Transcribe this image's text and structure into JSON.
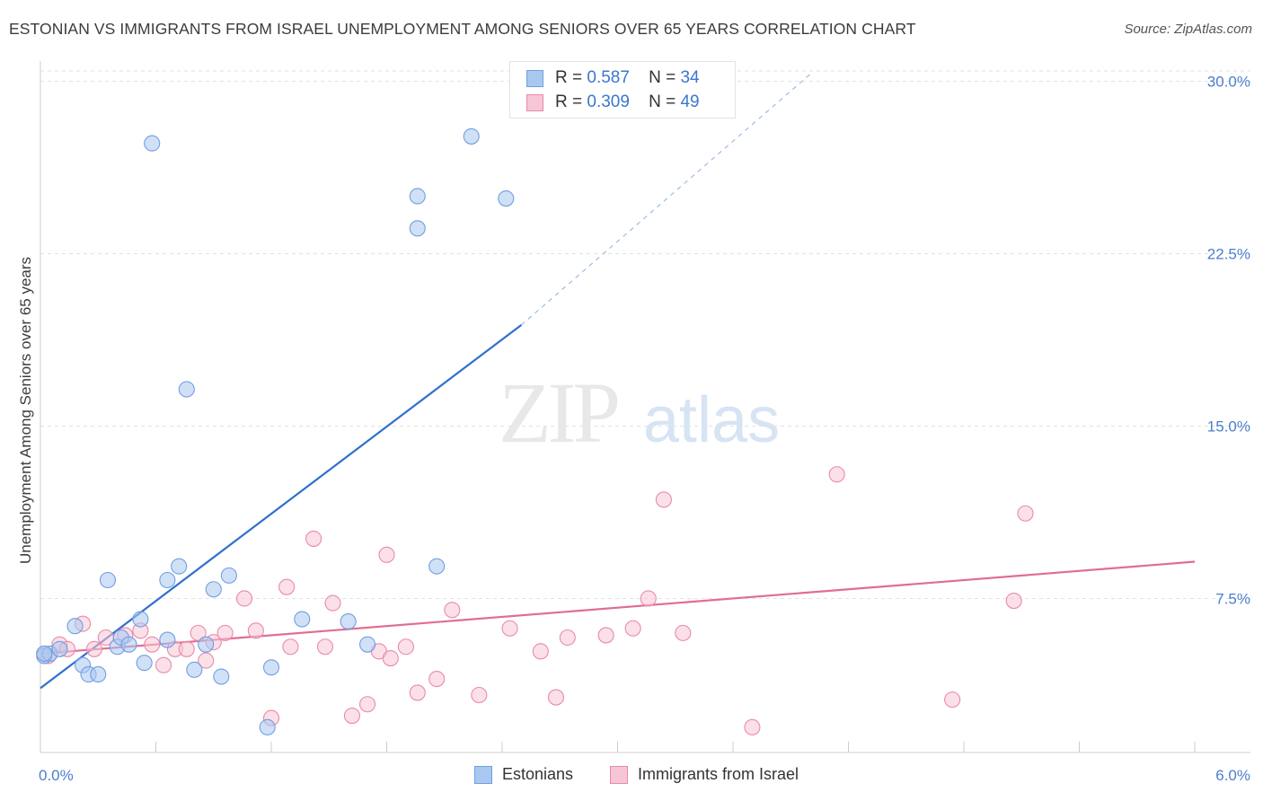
{
  "title": "ESTONIAN VS IMMIGRANTS FROM ISRAEL UNEMPLOYMENT AMONG SENIORS OVER 65 YEARS CORRELATION CHART",
  "source": "Source: ZipAtlas.com",
  "watermark": {
    "zip": "ZIP",
    "atlas": "atlas"
  },
  "legend": {
    "rows": [
      {
        "r_label": "R =",
        "r_value": "0.587",
        "n_label": "N =",
        "n_value": "34",
        "color": "#a9c8f0",
        "border": "#6f9fdf"
      },
      {
        "r_label": "R =",
        "r_value": "0.309",
        "n_label": "N =",
        "n_value": "49",
        "color": "#f7c6d6",
        "border": "#e98aa9"
      }
    ]
  },
  "bottom_legend": [
    {
      "label": "Estonians",
      "color": "#a9c8f0",
      "border": "#6f9fdf"
    },
    {
      "label": "Immigrants from Israel",
      "color": "#f7c6d6",
      "border": "#e98aa9"
    }
  ],
  "chart_data": {
    "type": "scatter",
    "title": "ESTONIAN VS IMMIGRANTS FROM ISRAEL UNEMPLOYMENT AMONG SENIORS OVER 65 YEARS CORRELATION CHART",
    "xlabel": "",
    "ylabel": "Unemployment Among Seniors over 65 years",
    "xlim": [
      0,
      6.0
    ],
    "ylim": [
      0.8,
      30.8
    ],
    "x_tick_labels": [
      "0.0%",
      "6.0%"
    ],
    "y_ticks": [
      7.5,
      15.0,
      22.5,
      30.0
    ],
    "y_tick_labels": [
      "7.5%",
      "15.0%",
      "22.5%",
      "30.0%"
    ],
    "grid": true,
    "series": [
      {
        "name": "Estonians",
        "color": "#6f9fdf",
        "fill": "#a9c8f0",
        "points": [
          [
            0.02,
            5.0
          ],
          [
            0.05,
            5.1
          ],
          [
            0.1,
            5.3
          ],
          [
            0.18,
            6.3
          ],
          [
            0.22,
            4.6
          ],
          [
            0.25,
            4.2
          ],
          [
            0.3,
            4.2
          ],
          [
            0.35,
            8.3
          ],
          [
            0.4,
            5.4
          ],
          [
            0.42,
            5.8
          ],
          [
            0.46,
            5.5
          ],
          [
            0.52,
            6.6
          ],
          [
            0.54,
            4.7
          ],
          [
            0.58,
            27.3
          ],
          [
            0.66,
            5.7
          ],
          [
            0.66,
            8.3
          ],
          [
            0.72,
            8.9
          ],
          [
            0.76,
            16.6
          ],
          [
            0.8,
            4.4
          ],
          [
            0.86,
            5.5
          ],
          [
            0.9,
            7.9
          ],
          [
            0.94,
            4.1
          ],
          [
            0.98,
            8.5
          ],
          [
            1.18,
            1.9
          ],
          [
            1.2,
            4.5
          ],
          [
            1.36,
            6.6
          ],
          [
            1.6,
            6.5
          ],
          [
            1.7,
            5.5
          ],
          [
            1.96,
            23.6
          ],
          [
            1.96,
            25.0
          ],
          [
            2.06,
            8.9
          ],
          [
            2.24,
            27.6
          ],
          [
            2.42,
            24.9
          ],
          [
            0.02,
            5.1
          ]
        ],
        "trend": {
          "x0": 0.0,
          "y0": 3.6,
          "x1": 2.5,
          "y1": 19.4,
          "dash_to_x": 4.0,
          "dash_to_y": 30.3
        }
      },
      {
        "name": "Immigrants from Israel",
        "color": "#e98aa9",
        "fill": "#f7c6d6",
        "points": [
          [
            0.02,
            5.1
          ],
          [
            0.1,
            5.5
          ],
          [
            0.14,
            5.3
          ],
          [
            0.22,
            6.4
          ],
          [
            0.28,
            5.3
          ],
          [
            0.34,
            5.8
          ],
          [
            0.44,
            5.9
          ],
          [
            0.52,
            6.1
          ],
          [
            0.58,
            5.5
          ],
          [
            0.64,
            4.6
          ],
          [
            0.7,
            5.3
          ],
          [
            0.76,
            5.3
          ],
          [
            0.82,
            6.0
          ],
          [
            0.86,
            4.8
          ],
          [
            0.9,
            5.6
          ],
          [
            0.96,
            6.0
          ],
          [
            1.06,
            7.5
          ],
          [
            1.12,
            6.1
          ],
          [
            1.2,
            2.3
          ],
          [
            1.28,
            8.0
          ],
          [
            1.3,
            5.4
          ],
          [
            1.42,
            10.1
          ],
          [
            1.48,
            5.4
          ],
          [
            1.52,
            7.3
          ],
          [
            1.62,
            2.4
          ],
          [
            1.7,
            2.9
          ],
          [
            1.76,
            5.2
          ],
          [
            1.8,
            9.4
          ],
          [
            1.82,
            4.9
          ],
          [
            1.9,
            5.4
          ],
          [
            1.96,
            3.4
          ],
          [
            2.06,
            4.0
          ],
          [
            2.14,
            7.0
          ],
          [
            2.28,
            3.3
          ],
          [
            2.44,
            6.2
          ],
          [
            2.6,
            5.2
          ],
          [
            2.68,
            3.2
          ],
          [
            2.74,
            5.8
          ],
          [
            2.94,
            5.9
          ],
          [
            3.08,
            6.2
          ],
          [
            3.16,
            7.5
          ],
          [
            3.24,
            11.8
          ],
          [
            3.34,
            6.0
          ],
          [
            3.7,
            1.9
          ],
          [
            4.14,
            12.9
          ],
          [
            4.74,
            3.1
          ],
          [
            5.06,
            7.4
          ],
          [
            5.12,
            11.2
          ],
          [
            0.04,
            5.0
          ]
        ],
        "trend": {
          "x0": 0.0,
          "y0": 5.1,
          "x1": 6.0,
          "y1": 9.1
        }
      }
    ]
  }
}
